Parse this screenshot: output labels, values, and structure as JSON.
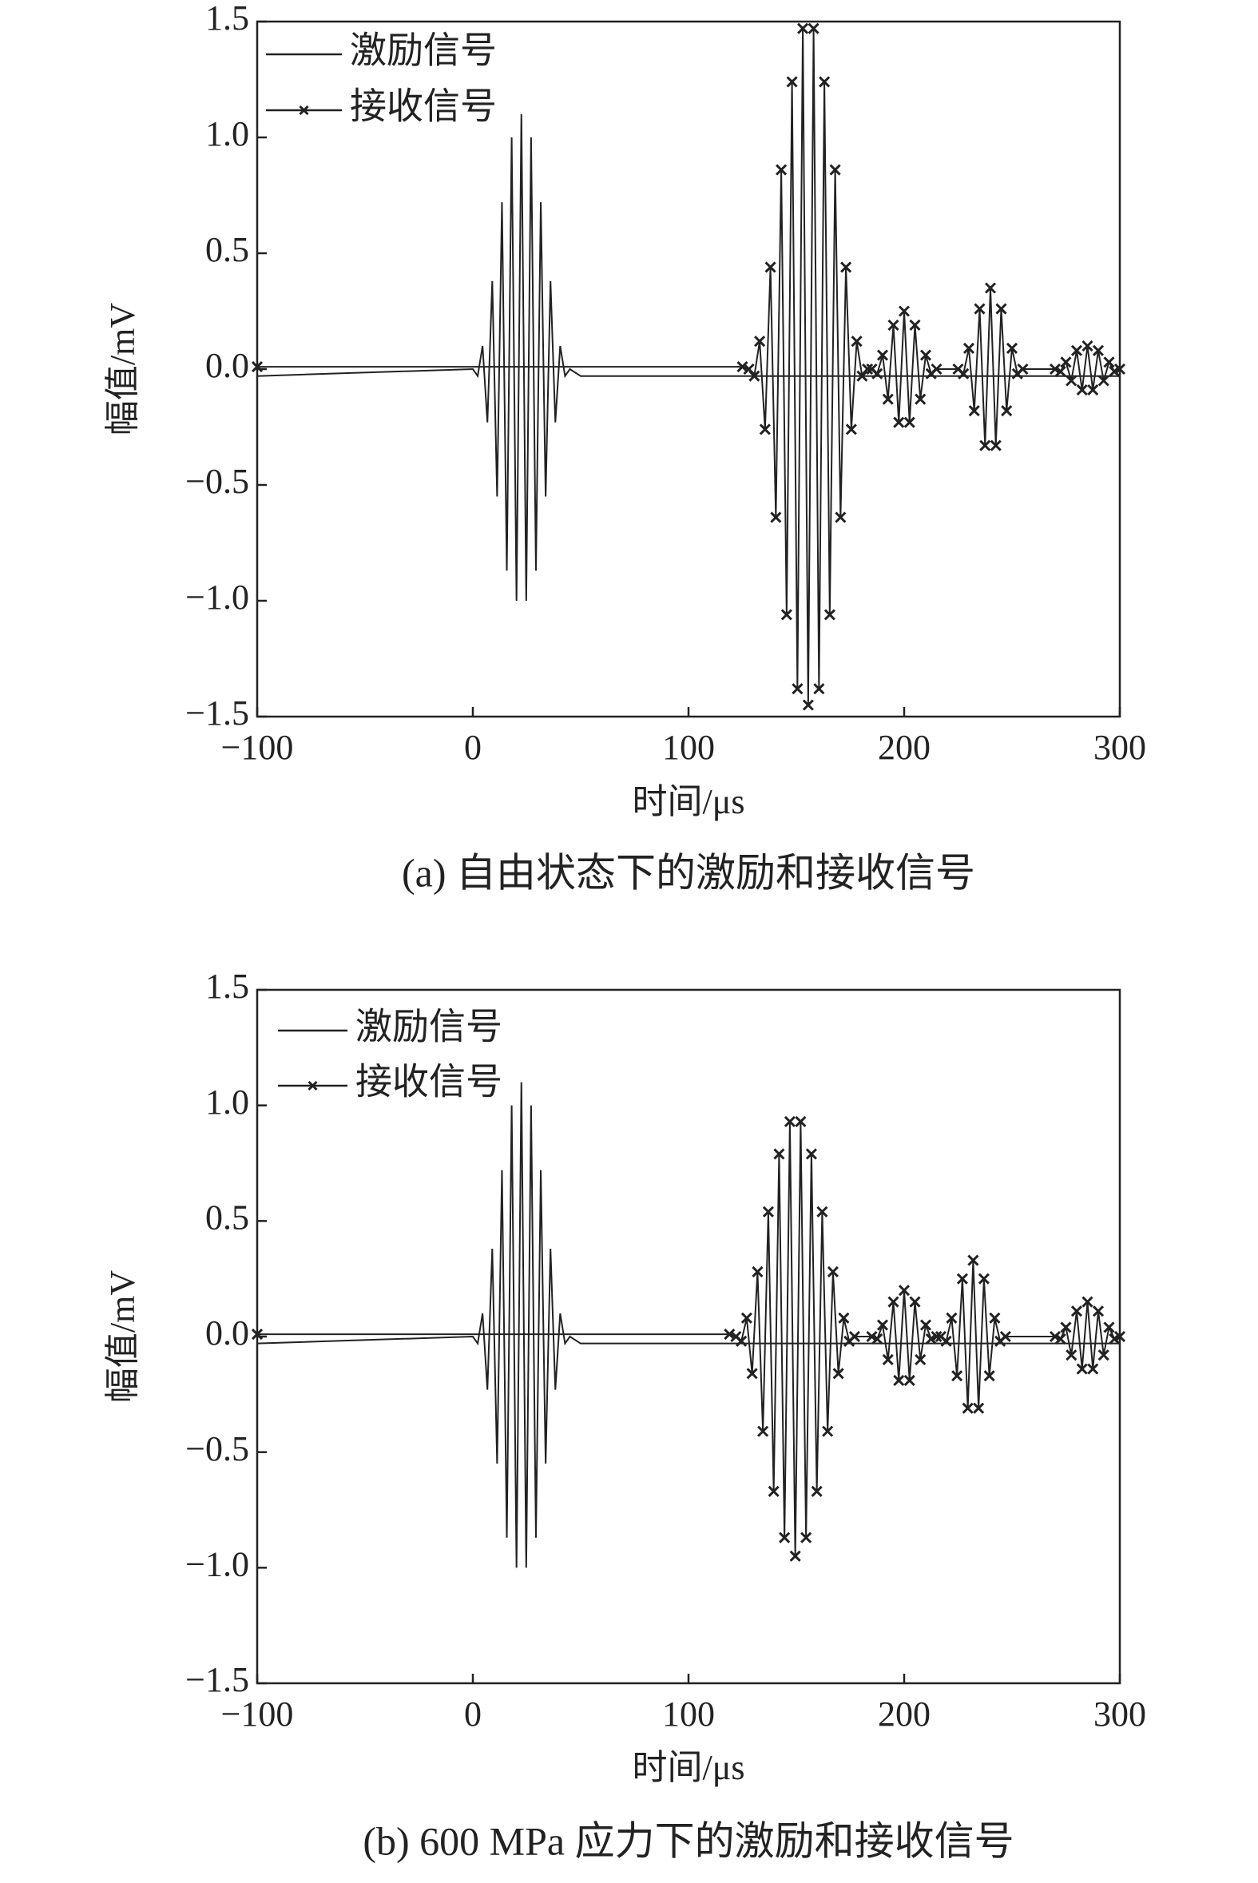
{
  "chart_data": [
    {
      "type": "line",
      "caption": "(a) 自由状态下的激励和接收信号",
      "xlabel": "时间/μs",
      "ylabel": "幅值/mV",
      "xlim": [
        -100,
        300
      ],
      "ylim": [
        -1.5,
        1.5
      ],
      "xticks": [
        {
          "value": -100,
          "label": "−100"
        },
        0,
        100,
        200,
        300
      ],
      "yticks": [
        {
          "value": -1.5,
          "label": "−1.5"
        },
        {
          "value": -1.0,
          "label": "−1.0"
        },
        {
          "value": -0.5,
          "label": "−0.5"
        },
        {
          "value": 0,
          "label": "0.0"
        },
        0.5,
        {
          "value": 1.0,
          "label": "1.0"
        },
        1.5
      ],
      "legend": "upper left",
      "series": [
        {
          "name": "激励信号",
          "color": "#222222",
          "marker": "none",
          "x": [
            -100,
            0,
            2.25,
            4.5,
            6.75,
            9,
            11.25,
            13.5,
            15.75,
            18,
            20.25,
            22.5,
            24.75,
            27,
            29.25,
            31.5,
            33.75,
            36,
            38.25,
            40.5,
            42.75,
            45,
            50,
            300
          ],
          "values": [
            -0.03,
            0,
            -0.03,
            0.1,
            -0.23,
            0.38,
            -0.55,
            0.72,
            -0.87,
            1.0,
            -1.0,
            1.1,
            -1.0,
            1.0,
            -0.87,
            0.72,
            -0.55,
            0.38,
            -0.23,
            0.1,
            -0.03,
            0,
            -0.03,
            -0.03
          ]
        },
        {
          "name": "接收信号",
          "color": "#222222",
          "marker": "x",
          "x": [
            -100,
            125,
            128,
            130.5,
            133,
            135.5,
            138,
            140.5,
            143,
            145.5,
            148,
            150.5,
            153,
            155.5,
            158,
            160.5,
            163,
            165.5,
            168,
            170.5,
            173,
            175.5,
            178,
            180.5,
            183,
            185,
            187.5,
            190,
            192.5,
            195,
            197.5,
            200,
            202.5,
            205,
            207.5,
            210,
            212.5,
            215,
            225,
            227.5,
            230,
            232.5,
            235,
            237.5,
            240,
            242.5,
            245,
            247.5,
            250,
            252.5,
            255,
            270,
            272.5,
            275,
            277.5,
            280,
            282.5,
            285,
            287.5,
            290,
            292.5,
            295,
            297.5,
            300
          ],
          "values": [
            0.01,
            0.01,
            0,
            -0.03,
            0.12,
            -0.26,
            0.44,
            -0.64,
            0.86,
            -1.06,
            1.24,
            -1.38,
            1.47,
            -1.45,
            1.47,
            -1.38,
            1.24,
            -1.06,
            0.86,
            -0.64,
            0.44,
            -0.26,
            0.12,
            -0.03,
            0,
            0,
            -0.02,
            0.06,
            -0.13,
            0.19,
            -0.23,
            0.25,
            -0.23,
            0.19,
            -0.13,
            0.06,
            -0.02,
            0,
            0,
            -0.02,
            0.09,
            -0.18,
            0.26,
            -0.33,
            0.35,
            -0.33,
            0.26,
            -0.18,
            0.09,
            -0.02,
            0,
            0,
            -0.01,
            0.03,
            -0.05,
            0.08,
            -0.09,
            0.1,
            -0.09,
            0.08,
            -0.05,
            0.03,
            -0.01,
            0
          ]
        }
      ]
    },
    {
      "type": "line",
      "caption": "(b) 600 MPa 应力下的激励和接收信号",
      "xlabel": "时间/μs",
      "ylabel": "幅值/mV",
      "xlim": [
        -100,
        300
      ],
      "ylim": [
        -1.5,
        1.5
      ],
      "xticks": [
        {
          "value": -100,
          "label": "−100"
        },
        0,
        100,
        200,
        300
      ],
      "yticks": [
        {
          "value": -1.5,
          "label": "−1.5"
        },
        {
          "value": -1.0,
          "label": "−1.0"
        },
        {
          "value": -0.5,
          "label": "−0.5"
        },
        {
          "value": 0,
          "label": "0.0"
        },
        0.5,
        {
          "value": 1.0,
          "label": "1.0"
        },
        1.5
      ],
      "legend": "upper left",
      "series": [
        {
          "name": "激励信号",
          "color": "#222222",
          "marker": "none",
          "x": [
            -100,
            0,
            2.25,
            4.5,
            6.75,
            9,
            11.25,
            13.5,
            15.75,
            18,
            20.25,
            22.5,
            24.75,
            27,
            29.25,
            31.5,
            33.75,
            36,
            38.25,
            40.5,
            42.75,
            45,
            50,
            300
          ],
          "values": [
            -0.03,
            0,
            -0.03,
            0.1,
            -0.23,
            0.38,
            -0.55,
            0.72,
            -0.87,
            1.0,
            -1.0,
            1.1,
            -1.0,
            1.0,
            -0.87,
            0.72,
            -0.55,
            0.38,
            -0.23,
            0.1,
            -0.03,
            0,
            -0.03,
            -0.03
          ]
        },
        {
          "name": "接收信号",
          "color": "#222222",
          "marker": "x",
          "x": [
            -100,
            119,
            122,
            124.5,
            127,
            129.5,
            132,
            134.5,
            137,
            139.5,
            142,
            144.5,
            147,
            149.5,
            152,
            154.5,
            157,
            159.5,
            162,
            164.5,
            167,
            169.5,
            172,
            174.5,
            177,
            185,
            187.5,
            190,
            192.5,
            195,
            197.5,
            200,
            202.5,
            205,
            207.5,
            210,
            212.5,
            215,
            217,
            219.5,
            222,
            224.5,
            227,
            229.5,
            232,
            234.5,
            237,
            239.5,
            242,
            244.5,
            247,
            270,
            272.5,
            275,
            277.5,
            280,
            282.5,
            285,
            287.5,
            290,
            292.5,
            295,
            297.5,
            300
          ],
          "values": [
            0.01,
            0.01,
            0,
            -0.02,
            0.08,
            -0.16,
            0.28,
            -0.41,
            0.54,
            -0.67,
            0.79,
            -0.87,
            0.93,
            -0.95,
            0.93,
            -0.87,
            0.79,
            -0.67,
            0.54,
            -0.41,
            0.28,
            -0.16,
            0.08,
            -0.02,
            0,
            0,
            -0.01,
            0.05,
            -0.1,
            0.15,
            -0.19,
            0.2,
            -0.19,
            0.15,
            -0.1,
            0.05,
            -0.01,
            0,
            0,
            -0.02,
            0.08,
            -0.17,
            0.25,
            -0.31,
            0.33,
            -0.31,
            0.25,
            -0.17,
            0.08,
            -0.02,
            0,
            0,
            -0.01,
            0.04,
            -0.08,
            0.11,
            -0.14,
            0.15,
            -0.14,
            0.11,
            -0.08,
            0.04,
            -0.01,
            0
          ]
        }
      ]
    }
  ]
}
